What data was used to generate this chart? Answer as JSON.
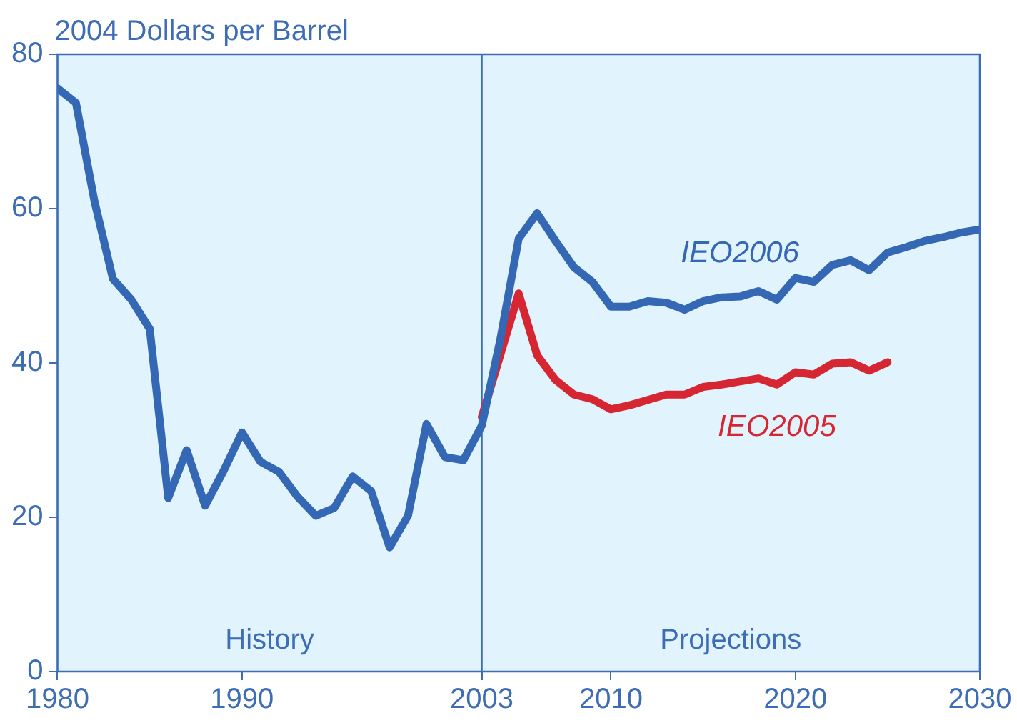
{
  "chart_data": {
    "type": "line",
    "ylabel": "2004 Dollars per Barrel",
    "xlim": [
      1980,
      2030
    ],
    "xticks": [
      1980,
      1990,
      2003,
      2010,
      2020,
      2030
    ],
    "ylim": [
      0,
      80
    ],
    "yticks": [
      0,
      20,
      40,
      60,
      80
    ],
    "grid": false,
    "legend": false,
    "marker": "none",
    "line_style": "solid",
    "series": [
      {
        "name": "IEO2006",
        "color": "#3568b4",
        "x": [
          1980,
          1981,
          1982,
          1983,
          1984,
          1985,
          1986,
          1987,
          1988,
          1989,
          1990,
          1991,
          1992,
          1993,
          1994,
          1995,
          1996,
          1997,
          1998,
          1999,
          2000,
          2001,
          2002,
          2003,
          2004,
          2005,
          2006,
          2007,
          2008,
          2009,
          2010,
          2011,
          2012,
          2013,
          2014,
          2015,
          2016,
          2017,
          2018,
          2019,
          2020,
          2021,
          2022,
          2023,
          2024,
          2025,
          2026,
          2027,
          2028,
          2029,
          2030
        ],
        "values": [
          75.6,
          73.7,
          61,
          50.9,
          48.2,
          44.4,
          22.5,
          28.7,
          21.5,
          26,
          31,
          27.2,
          25.9,
          22.7,
          20.2,
          21.2,
          25.3,
          23.4,
          16.1,
          20.2,
          32.1,
          27.8,
          27.4,
          31.9,
          43,
          56.1,
          59.4,
          55.8,
          52.4,
          50.5,
          47.3,
          47.3,
          48,
          47.8,
          46.9,
          48,
          48.5,
          48.6,
          49.3,
          48.2,
          51,
          50.5,
          52.7,
          53.3,
          52,
          54.3,
          55,
          55.8,
          56.3,
          56.9,
          57.3
        ]
      },
      {
        "name": "IEO2005",
        "color": "#d62631",
        "x": [
          2003,
          2004,
          2005,
          2006,
          2007,
          2008,
          2009,
          2010,
          2011,
          2012,
          2013,
          2014,
          2015,
          2016,
          2017,
          2018,
          2019,
          2020,
          2021,
          2022,
          2023,
          2024,
          2025
        ],
        "values": [
          33,
          41,
          49,
          41,
          37.8,
          35.9,
          35.3,
          34,
          34.5,
          35.2,
          35.9,
          35.9,
          36.9,
          37.2,
          37.6,
          38,
          37.2,
          38.8,
          38.5,
          39.9,
          40.1,
          39,
          40.1
        ]
      }
    ],
    "ref_lines": [
      {
        "axis": "x",
        "value": 2003,
        "color": "#3a6fb7"
      }
    ],
    "bands": [
      {
        "axis": "x",
        "from": 1980,
        "to": 2003,
        "label": "History",
        "color": "#e1f3fd"
      },
      {
        "axis": "x",
        "from": 2003,
        "to": 2030,
        "label": "Projections",
        "color": "#e1f3fd"
      }
    ]
  }
}
